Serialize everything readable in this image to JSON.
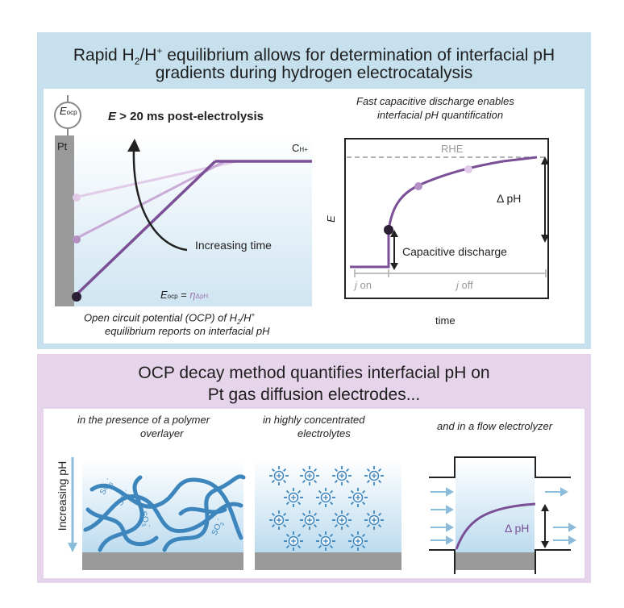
{
  "top": {
    "title_line1_a": "Rapid H",
    "title_line1_sub": "2",
    "title_line1_b": "/H",
    "title_line1_sup": "+",
    "title_line1_c": " equilibrium allows for determination of interfacial pH",
    "title_line2": "gradients during hydrogen electrocatalysis",
    "left": {
      "e_ocp_main": "E",
      "e_ocp_sub": "ocp",
      "heading_italic": "E",
      "heading_rest": " > 20 ms post-electrolysis",
      "electrode_label": "Pt",
      "conc_main": "C",
      "conc_sub": "H+",
      "arrow_label": "Increasing time",
      "eocp_eq_main": "E",
      "eocp_eq_sub": "ocp",
      "eocp_eq_eq": " = ",
      "eocp_eq_eta": "η",
      "eocp_eq_eta_sub": "ΔpH",
      "caption1_a": "Open circuit potential (OCP) of H",
      "caption1_sub": "2",
      "caption1_b": "/H",
      "caption1_sup": "+",
      "caption2": "equilibrium reports on interfacial pH"
    },
    "right": {
      "heading1": "Fast capacitive discharge enables",
      "heading2": "interfacial pH quantification",
      "rhe": "RHE",
      "dph": "Δ pH",
      "y_axis": "E",
      "cap_label": "Capacitive discharge",
      "j_on_a": "j",
      "j_on_b": " on",
      "j_off_a": "j",
      "j_off_b": " off",
      "x_axis": "time"
    }
  },
  "bottom": {
    "title_line1": "OCP decay method quantifies interfacial pH on",
    "title_line2": "Pt gas diffusion electrodes...",
    "col1_line1": "in the presence of a polymer",
    "col1_line2": "overlayer",
    "col2_line1": "in highly concentrated",
    "col2_line2": "electrolytes",
    "col3_line1": "and in a flow electrolyzer",
    "ph_axis": "Increasing pH",
    "so3_a": "SO",
    "so3_sub": "3",
    "so3_sup": "-",
    "dph": "Δ pH"
  },
  "colors": {
    "top_panel": "#c6e0ee",
    "bottom_panel": "#e6d4ea",
    "purple_dark": "#7b4f95",
    "purple_mid": "#b48fc4",
    "purple_light": "#e2cbe9",
    "blue_polymer": "#3d86bd",
    "blue_light": "#d7e9f4",
    "grey_electrode": "#9a9a9a"
  }
}
